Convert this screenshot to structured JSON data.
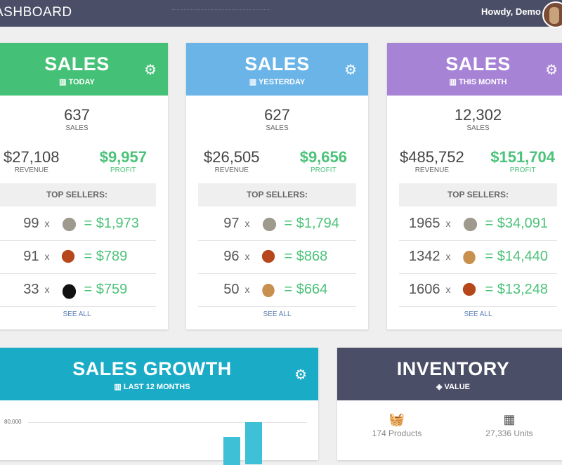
{
  "topbar": {
    "title": "ASHBOARD",
    "greeting": "Howdy, Demo"
  },
  "cards": [
    {
      "title": "SALES",
      "subtitle": "TODAY",
      "color": "#45c177",
      "sales": "637",
      "sales_label": "SALES",
      "revenue": "$27,108",
      "revenue_label": "REVENUE",
      "profit": "$9,957",
      "profit_label": "PROFIT",
      "top_sellers_label": "TOP SELLERS:",
      "sellers": [
        {
          "qty": "99",
          "x": "x",
          "animal": "goat",
          "price": "= $1,973"
        },
        {
          "qty": "91",
          "x": "x",
          "animal": "orangutan",
          "price": "= $789"
        },
        {
          "qty": "33",
          "x": "x",
          "animal": "swan",
          "price": "= $759"
        }
      ],
      "see_all": "SEE ALL"
    },
    {
      "title": "SALES",
      "subtitle": "YESTERDAY",
      "color": "#6ab4e8",
      "sales": "627",
      "sales_label": "SALES",
      "revenue": "$26,505",
      "revenue_label": "REVENUE",
      "profit": "$9,656",
      "profit_label": "PROFIT",
      "top_sellers_label": "TOP SELLERS:",
      "sellers": [
        {
          "qty": "97",
          "x": "x",
          "animal": "goat",
          "price": "= $1,794"
        },
        {
          "qty": "96",
          "x": "x",
          "animal": "orangutan",
          "price": "= $868"
        },
        {
          "qty": "50",
          "x": "x",
          "animal": "dog",
          "price": "= $664"
        }
      ],
      "see_all": "SEE ALL"
    },
    {
      "title": "SALES",
      "subtitle": "THIS MONTH",
      "color": "#a783d6",
      "sales": "12,302",
      "sales_label": "SALES",
      "revenue": "$485,752",
      "revenue_label": "REVENUE",
      "profit": "$151,704",
      "profit_label": "PROFIT",
      "top_sellers_label": "TOP SELLERS:",
      "sellers": [
        {
          "qty": "1965",
          "x": "x",
          "animal": "goat",
          "price": "= $34,091"
        },
        {
          "qty": "1342",
          "x": "x",
          "animal": "dog",
          "price": "= $14,440"
        },
        {
          "qty": "1606",
          "x": "x",
          "animal": "orangutan",
          "price": "= $13,248"
        }
      ],
      "see_all": "SEE ALL"
    }
  ],
  "growth": {
    "title": "SALES GROWTH",
    "subtitle": "LAST 12 MONTHS",
    "ytick": "80,000"
  },
  "inventory": {
    "title": "INVENTORY",
    "subtitle": "VALUE",
    "products": "174 Products",
    "units": "27,336 Units"
  }
}
